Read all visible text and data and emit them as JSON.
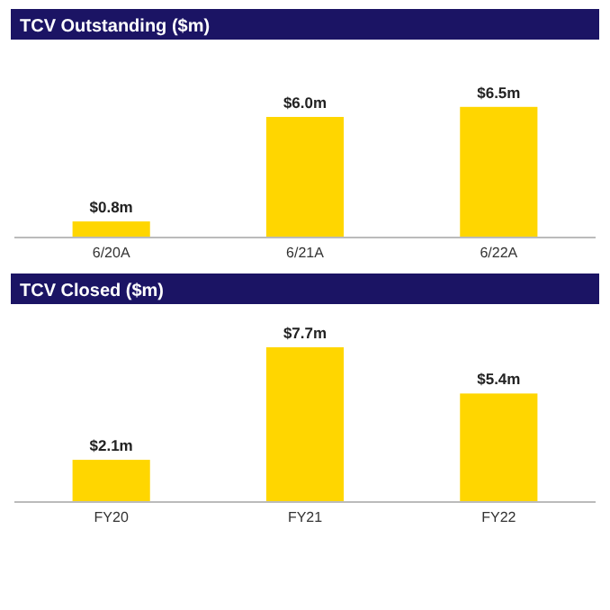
{
  "chart_data": [
    {
      "type": "bar",
      "title": "TCV Outstanding ($m)",
      "categories": [
        "6/20A",
        "6/21A",
        "6/22A"
      ],
      "values": [
        0.8,
        6.0,
        6.5
      ],
      "value_labels": [
        "$0.8m",
        "$6.0m",
        "$6.5m"
      ],
      "color": "#ffd600"
    },
    {
      "type": "bar",
      "title": "TCV Closed ($m)",
      "categories": [
        "FY20",
        "FY21",
        "FY22"
      ],
      "values": [
        2.1,
        7.7,
        5.4
      ],
      "value_labels": [
        "$2.1m",
        "$7.7m",
        "$5.4m"
      ],
      "color": "#ffd600"
    }
  ]
}
